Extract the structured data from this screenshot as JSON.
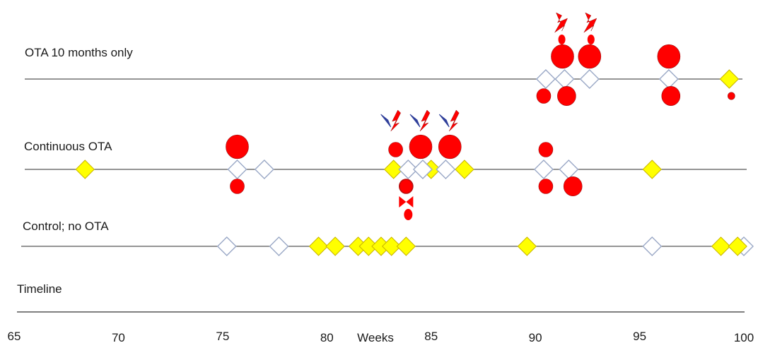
{
  "rows": [
    {
      "id": "ota10",
      "label": "OTA  10 months only"
    },
    {
      "id": "continuous",
      "label": "Continuous OTA"
    },
    {
      "id": "control",
      "label": "Control; no OTA"
    },
    {
      "id": "timeline",
      "label": "Timeline"
    }
  ],
  "axis": {
    "ticks": [
      "65",
      "70",
      "75",
      "80",
      "85",
      "90",
      "95",
      "100"
    ],
    "units_label": "Weeks",
    "range": [
      65,
      100
    ]
  },
  "colors": {
    "event_fill": "#ff0000",
    "filled_diamond": "#ffff00",
    "filled_diamond_stroke": "#c8b400",
    "open_diamond_stroke": "#9aa8c6",
    "line": "#555555",
    "lightning_blue": "#2f3f9a"
  },
  "chart_data": {
    "type": "scatter",
    "x_unit": "weeks",
    "xlim": [
      65,
      100
    ],
    "series": [
      {
        "row": "ota10",
        "kind": "open-diamond",
        "x": [
          90.5,
          91.4,
          92.6,
          96.4
        ]
      },
      {
        "row": "ota10",
        "kind": "filled-diamond",
        "x": [
          99.3
        ]
      },
      {
        "row": "ota10",
        "kind": "large-circle-above",
        "x": [
          91.3,
          92.6,
          96.4
        ]
      },
      {
        "row": "ota10",
        "kind": "small-circle-below",
        "x": [
          90.4,
          91.5,
          96.5,
          99.4
        ]
      },
      {
        "row": "ota10",
        "kind": "red-lightning",
        "x": [
          91.2,
          92.6
        ]
      },
      {
        "row": "continuous",
        "kind": "filled-diamond",
        "x": [
          68.4,
          83.2,
          85.0,
          86.6,
          95.6
        ]
      },
      {
        "row": "continuous",
        "kind": "open-diamond",
        "x": [
          75.7,
          77.0,
          83.9,
          84.6,
          85.7,
          90.4,
          91.6
        ]
      },
      {
        "row": "continuous",
        "kind": "large-circle-above",
        "x": [
          75.7,
          84.5,
          85.9
        ]
      },
      {
        "row": "continuous",
        "kind": "small-circle-above",
        "x": [
          83.3,
          90.5
        ]
      },
      {
        "row": "continuous",
        "kind": "small-circle-below",
        "x": [
          75.7,
          83.8,
          90.5,
          91.8
        ]
      },
      {
        "row": "continuous",
        "kind": "lightning",
        "x": [
          83.2,
          84.6,
          86.0
        ]
      },
      {
        "row": "control",
        "kind": "open-diamond",
        "x": [
          75.2,
          77.7,
          95.6,
          100.0
        ]
      },
      {
        "row": "control",
        "kind": "filled-diamond",
        "x": [
          79.6,
          80.4,
          81.5,
          82.0,
          82.6,
          83.1,
          83.8,
          89.6,
          98.9,
          99.7
        ]
      }
    ]
  }
}
